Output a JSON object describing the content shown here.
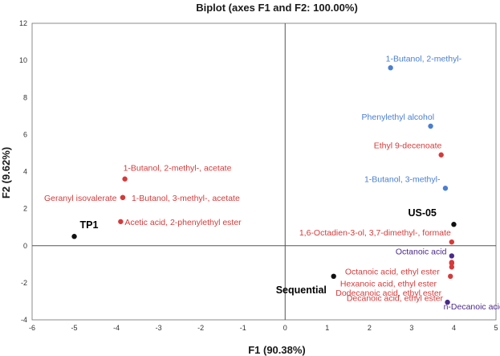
{
  "chart_data": {
    "type": "scatter",
    "title": "Biplot (axes F1 and F2: 100.00%)",
    "xlabel": "F1 (90.38%)",
    "ylabel": "F2 (9.62%)",
    "xlim": [
      -6,
      5
    ],
    "ylim": [
      -4,
      12
    ],
    "xticks": [
      -6,
      -5,
      -4,
      -3,
      -2,
      -1,
      0,
      1,
      2,
      3,
      4,
      5
    ],
    "yticks": [
      -4,
      -2,
      0,
      2,
      4,
      6,
      8,
      10,
      12
    ],
    "grid": false,
    "colors": {
      "observation": "#111111",
      "compound_red": "#d63a3a",
      "compound_blue": "#4a7fd1",
      "compound_purple": "#4b2a8a"
    },
    "series": [
      {
        "group": "observation",
        "points": [
          {
            "label": "TP1",
            "x": -5.0,
            "y": 0.5
          },
          {
            "label": "US-05",
            "x": 4.0,
            "y": 1.15
          },
          {
            "label": "Sequential",
            "x": 1.15,
            "y": -1.65
          }
        ]
      },
      {
        "group": "compound_blue",
        "points": [
          {
            "label": "1-Butanol, 2-methyl-",
            "x": 2.5,
            "y": 9.6
          },
          {
            "label": "Phenylethyl alcohol",
            "x": 3.45,
            "y": 6.45
          },
          {
            "label": "1-Butanol, 3-methyl-",
            "x": 3.8,
            "y": 3.1
          }
        ]
      },
      {
        "group": "compound_red",
        "points": [
          {
            "label": "Ethyl 9-decenoate",
            "x": 3.7,
            "y": 4.9
          },
          {
            "label": "1-Butanol, 2-methyl-, acetate",
            "x": -3.8,
            "y": 3.6
          },
          {
            "label": "Geranyl isovalerate",
            "x": -3.85,
            "y": 2.6
          },
          {
            "label": "1-Butanol, 3-methyl-, acetate",
            "x": -3.85,
            "y": 2.6
          },
          {
            "label": "Acetic acid, 2-phenylethyl ester",
            "x": -3.9,
            "y": 1.3
          },
          {
            "label": "1,6-Octadien-3-ol, 3,7-dimethyl-, formate",
            "x": 3.95,
            "y": 0.2
          },
          {
            "label": "Octanoic acid, ethyl ester",
            "x": 3.95,
            "y": -0.95
          },
          {
            "label": "Hexanoic acid, ethyl ester",
            "x": 3.95,
            "y": -1.15
          },
          {
            "label": "Dodecanoic acid, ethyl ester",
            "x": 3.92,
            "y": -1.65
          },
          {
            "label": "Decanoic acid, ethyl ester",
            "x": 3.95,
            "y": -0.9
          }
        ]
      },
      {
        "group": "compound_purple",
        "points": [
          {
            "label": "Octanoic acid",
            "x": 3.95,
            "y": -0.55
          },
          {
            "label": "n-Decanoic acid",
            "x": 3.85,
            "y": -3.05
          }
        ]
      }
    ]
  }
}
